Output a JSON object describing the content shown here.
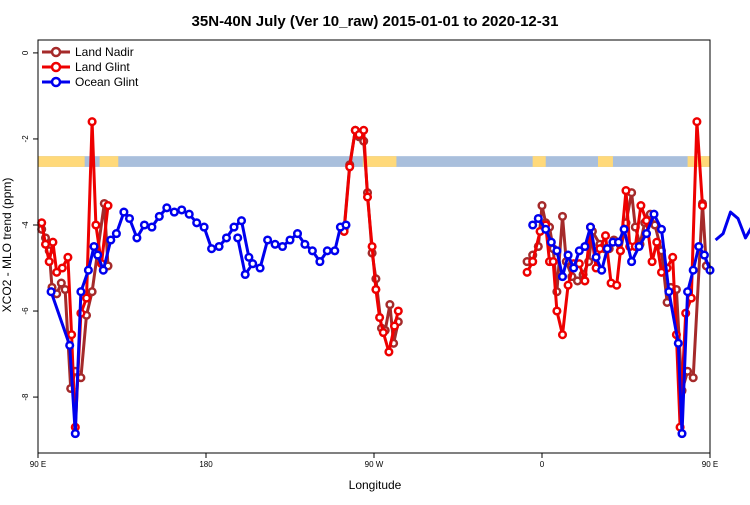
{
  "chart_data": {
    "type": "line",
    "title": "35N-40N July (Ver 10_raw)   2015-01-01 to 2020-12-31",
    "xlabel": "Longitude",
    "ylabel": "XCO2 - MLO trend (ppm)",
    "xlim": [
      90,
      450
    ],
    "ylim": [
      -9.3,
      0.3
    ],
    "grid": false,
    "legend_position": "top-left",
    "x_ticks": [
      {
        "value": 90,
        "label": "90 E"
      },
      {
        "value": 180,
        "label": "180"
      },
      {
        "value": 270,
        "label": "90 W"
      },
      {
        "value": 360,
        "label": "0"
      },
      {
        "value": 450,
        "label": "90 E"
      },
      {
        "value": 540,
        "label": "180"
      }
    ],
    "y_ticks": [
      {
        "value": 0,
        "label": "0"
      },
      {
        "value": -2,
        "label": "-2"
      },
      {
        "value": -4,
        "label": "-4"
      },
      {
        "value": -6,
        "label": "-6"
      },
      {
        "value": -8,
        "label": "-8"
      }
    ],
    "surface_band": {
      "y_range": [
        -2.65,
        -2.4
      ],
      "land_color": "#ffd97a",
      "ocean_color": "#a9bfdc",
      "land_segments": [
        [
          90,
          115
        ],
        [
          123,
          133
        ],
        [
          264,
          282
        ],
        [
          355,
          362
        ],
        [
          390,
          398
        ],
        [
          438,
          450
        ],
        [
          453,
          473
        ],
        [
          481,
          493
        ],
        [
          624,
          642
        ],
        [
          660,
          668
        ]
      ]
    },
    "series": [
      {
        "name": "Land Nadir",
        "color": "#a52a2a",
        "segments": [
          [
            [
              92,
              -4.1
            ],
            [
              94,
              -4.3
            ],
            [
              96,
              -4.6
            ],
            [
              97.5,
              -5.45
            ],
            [
              100,
              -5.6
            ],
            [
              102.5,
              -5.35
            ],
            [
              104.5,
              -5.5
            ],
            [
              107.5,
              -7.8
            ],
            [
              110,
              -7.4
            ],
            [
              113,
              -7.55
            ],
            [
              116,
              -6.1
            ],
            [
              119,
              -5.55
            ],
            [
              125.5,
              -3.5
            ],
            [
              127.5,
              -4.95
            ]
          ],
          [
            [
              254,
              -4.1
            ],
            [
              257,
              -2.6
            ],
            [
              260,
              -1.8
            ],
            [
              262,
              -1.95
            ],
            [
              264.5,
              -2.05
            ],
            [
              266.5,
              -3.25
            ],
            [
              269,
              -4.65
            ],
            [
              271,
              -5.25
            ],
            [
              274,
              -6.4
            ],
            [
              276,
              -6.45
            ],
            [
              278.5,
              -5.85
            ],
            [
              280.5,
              -6.75
            ],
            [
              283,
              -6.25
            ]
          ],
          [
            [
              352,
              -4.85
            ],
            [
              355,
              -4.7
            ],
            [
              358,
              -4.5
            ],
            [
              360,
              -3.55
            ],
            [
              362,
              -3.95
            ],
            [
              364,
              -4.05
            ],
            [
              366,
              -4.55
            ],
            [
              368,
              -5.55
            ],
            [
              371,
              -3.8
            ],
            [
              373,
              -4.85
            ],
            [
              376,
              -5.2
            ],
            [
              379,
              -5.3
            ],
            [
              382,
              -5.15
            ],
            [
              385,
              -4.85
            ],
            [
              387,
              -4.15
            ],
            [
              391,
              -4.45
            ],
            [
              393.5,
              -4.55
            ],
            [
              396,
              -4.55
            ],
            [
              398.5,
              -4.35
            ],
            [
              402,
              -4.6
            ],
            [
              405,
              -3.95
            ],
            [
              408,
              -3.25
            ],
            [
              410,
              -4.05
            ],
            [
              412.5,
              -4.45
            ],
            [
              415,
              -3.95
            ],
            [
              418,
              -3.75
            ],
            [
              420.5,
              -4.0
            ],
            [
              424,
              -4.6
            ],
            [
              427,
              -5.8
            ],
            [
              429,
              -5.45
            ],
            [
              432,
              -5.5
            ],
            [
              435,
              -7.85
            ],
            [
              438,
              -7.4
            ],
            [
              441,
              -7.55
            ],
            [
              446,
              -3.5
            ],
            [
              448,
              -4.95
            ]
          ]
        ]
      },
      {
        "name": "Land Glint",
        "color": "#ee0000",
        "segments": [
          [
            [
              92,
              -3.95
            ],
            [
              94,
              -4.45
            ],
            [
              96,
              -4.85
            ],
            [
              98,
              -4.4
            ],
            [
              100,
              -5.1
            ],
            [
              103,
              -5.0
            ],
            [
              106,
              -4.75
            ],
            [
              108,
              -6.55
            ],
            [
              110,
              -8.7
            ],
            [
              113,
              -6.05
            ],
            [
              116,
              -5.7
            ],
            [
              119,
              -1.6
            ],
            [
              121,
              -4.0
            ],
            [
              124,
              -4.9
            ],
            [
              127.5,
              -3.55
            ]
          ],
          [
            [
              254,
              -4.15
            ],
            [
              257,
              -2.65
            ],
            [
              260,
              -1.8
            ],
            [
              262,
              -1.9
            ],
            [
              264.5,
              -1.8
            ],
            [
              266.5,
              -3.35
            ],
            [
              269,
              -4.5
            ],
            [
              271,
              -5.5
            ],
            [
              273,
              -6.15
            ],
            [
              275,
              -6.5
            ],
            [
              278,
              -6.95
            ],
            [
              281,
              -6.35
            ],
            [
              283,
              -6.0
            ]
          ],
          [
            [
              352,
              -5.1
            ],
            [
              355,
              -4.85
            ],
            [
              359,
              -4.15
            ],
            [
              362,
              -4.0
            ],
            [
              364,
              -4.85
            ],
            [
              366,
              -4.85
            ],
            [
              368,
              -6.0
            ],
            [
              371,
              -6.55
            ],
            [
              374,
              -5.4
            ],
            [
              377,
              -4.9
            ],
            [
              380,
              -4.9
            ],
            [
              383,
              -5.3
            ],
            [
              386,
              -4.05
            ],
            [
              389,
              -5.0
            ],
            [
              391,
              -4.55
            ],
            [
              394,
              -4.25
            ],
            [
              397,
              -5.35
            ],
            [
              400,
              -5.4
            ],
            [
              402,
              -4.6
            ],
            [
              405,
              -3.2
            ],
            [
              407,
              -4.5
            ],
            [
              410,
              -4.5
            ],
            [
              413,
              -3.55
            ],
            [
              416,
              -3.9
            ],
            [
              419,
              -4.85
            ],
            [
              421.5,
              -4.4
            ],
            [
              424,
              -5.1
            ],
            [
              427,
              -5.0
            ],
            [
              430,
              -4.75
            ],
            [
              432,
              -6.55
            ],
            [
              434,
              -8.7
            ],
            [
              437,
              -6.05
            ],
            [
              440,
              -5.7
            ],
            [
              443,
              -1.6
            ],
            [
              446,
              -3.55
            ]
          ]
        ]
      },
      {
        "name": "Ocean Glint",
        "color": "#0000ee",
        "segments": [
          [
            [
              97,
              -5.55
            ],
            [
              107,
              -6.8
            ],
            [
              110,
              -8.85
            ],
            [
              113,
              -5.55
            ],
            [
              117,
              -5.05
            ],
            [
              120,
              -4.5
            ],
            [
              122,
              -4.7
            ],
            [
              125,
              -5.05
            ],
            [
              129,
              -4.35
            ],
            [
              132,
              -4.2
            ],
            [
              136,
              -3.7
            ],
            [
              139,
              -3.85
            ],
            [
              143,
              -4.3
            ],
            [
              147,
              -4.0
            ],
            [
              151,
              -4.05
            ],
            [
              155,
              -3.8
            ],
            [
              159,
              -3.6
            ],
            [
              163,
              -3.7
            ],
            [
              167,
              -3.65
            ],
            [
              171,
              -3.75
            ],
            [
              175,
              -3.95
            ],
            [
              179,
              -4.05
            ],
            [
              183,
              -4.55
            ],
            [
              187,
              -4.5
            ],
            [
              191,
              -4.3
            ],
            [
              195,
              -4.05
            ],
            [
              199,
              -3.9
            ],
            [
              203,
              -4.75
            ]
          ],
          [
            [
              197,
              -4.3
            ],
            [
              201,
              -5.15
            ],
            [
              205,
              -4.9
            ],
            [
              209,
              -5.0
            ],
            [
              213,
              -4.35
            ],
            [
              217,
              -4.45
            ],
            [
              221,
              -4.5
            ],
            [
              225,
              -4.35
            ],
            [
              229,
              -4.2
            ],
            [
              233,
              -4.45
            ],
            [
              237,
              -4.6
            ],
            [
              241,
              -4.85
            ],
            [
              245,
              -4.6
            ],
            [
              249,
              -4.6
            ],
            [
              252,
              -4.05
            ],
            [
              255,
              -4.0
            ]
          ],
          [
            [
              355,
              -4.0
            ],
            [
              358,
              -3.85
            ],
            [
              362,
              -4.1
            ],
            [
              365,
              -4.4
            ],
            [
              368,
              -4.6
            ],
            [
              371,
              -5.2
            ],
            [
              374,
              -4.7
            ],
            [
              377,
              -5.0
            ],
            [
              380,
              -4.6
            ],
            [
              383,
              -4.5
            ],
            [
              386,
              -4.05
            ],
            [
              389,
              -4.75
            ],
            [
              392,
              -5.05
            ],
            [
              395,
              -4.55
            ],
            [
              398,
              -4.4
            ],
            [
              401,
              -4.4
            ],
            [
              404,
              -4.1
            ],
            [
              408,
              -4.85
            ],
            [
              412,
              -4.5
            ],
            [
              416,
              -4.2
            ],
            [
              420,
              -3.75
            ],
            [
              424,
              -4.1
            ],
            [
              428,
              -5.55
            ],
            [
              433,
              -6.75
            ],
            [
              435,
              -8.85
            ],
            [
              438,
              -5.55
            ],
            [
              441,
              -5.05
            ],
            [
              444,
              -4.5
            ],
            [
              447,
              -4.7
            ],
            [
              450,
              -5.05
            ]
          ],
          [
            [
              453,
              -4.35
            ],
            [
              457,
              -4.2
            ],
            [
              461,
              -3.7
            ],
            [
              465,
              -3.85
            ],
            [
              469,
              -4.3
            ],
            [
              473,
              -4.0
            ]
          ]
        ]
      }
    ]
  }
}
